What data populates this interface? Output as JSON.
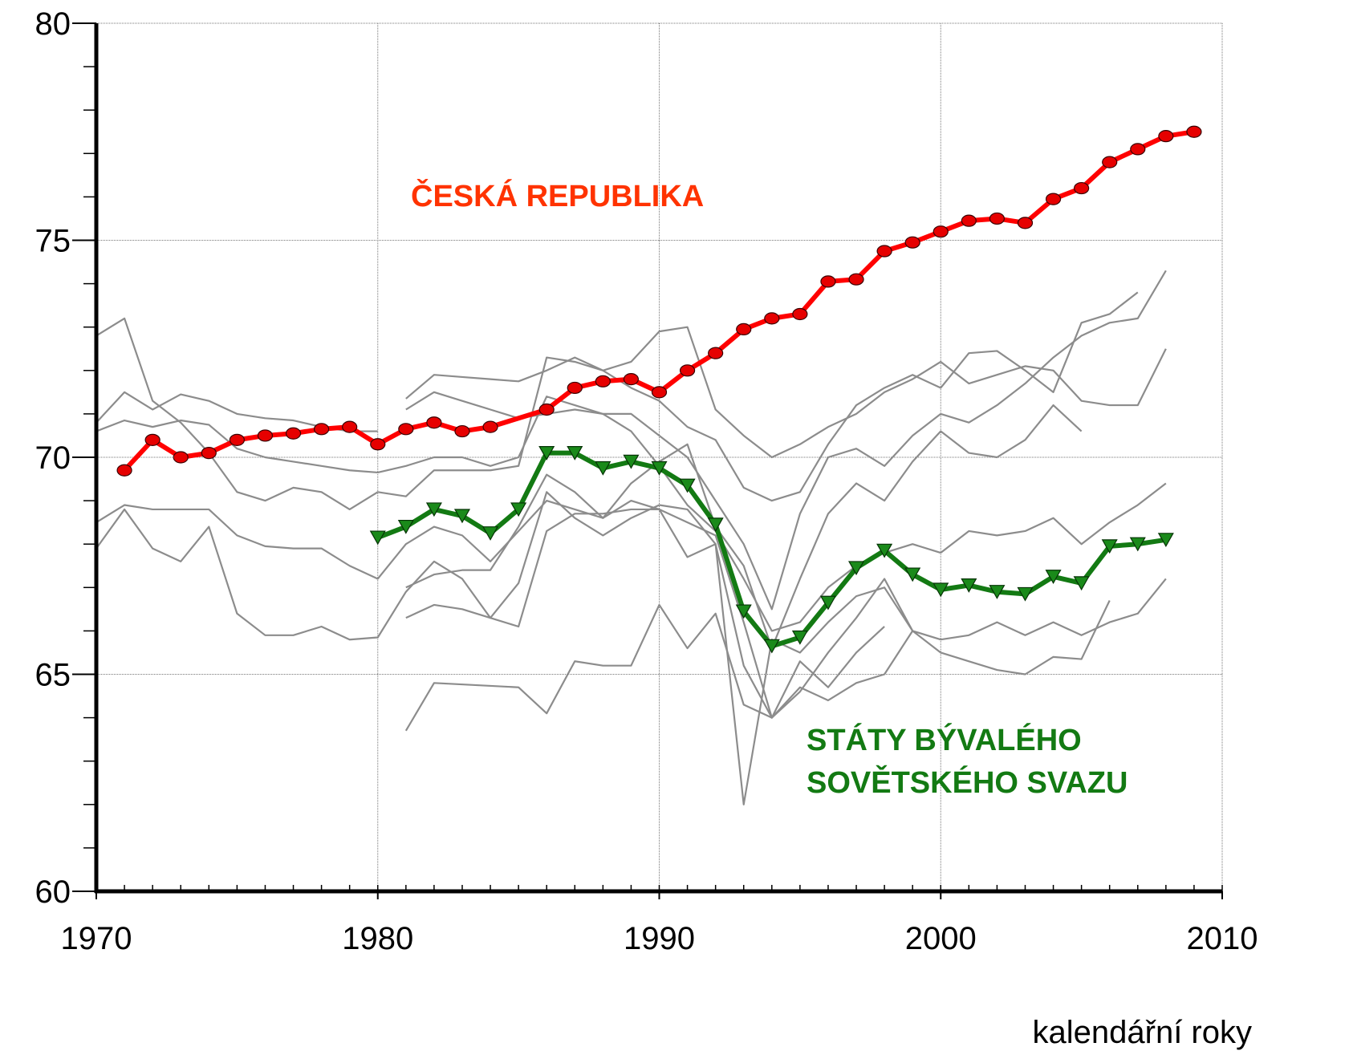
{
  "chart_data": {
    "type": "line",
    "xlabel": "kalendářní roky",
    "xlim": [
      1970,
      2010
    ],
    "xticks": [
      1970,
      1980,
      1990,
      2000,
      2010
    ],
    "xminor_step": 1,
    "ylim": [
      60,
      80
    ],
    "yticks": [
      60,
      65,
      70,
      75,
      80
    ],
    "yminor_step": 1,
    "grid": true,
    "annotations": [
      "ČESKÁ REPUBLIKA",
      "STÁTY BÝVALÉHO",
      "SOVĚTSKÉHO SVAZU"
    ],
    "series": [
      {
        "color": "#8c8c8c",
        "x": [
          1970,
          1971,
          1972,
          1973,
          1974,
          1975,
          1976,
          1977,
          1978,
          1979,
          1980,
          1981,
          1982,
          1983,
          1984,
          1985,
          1986,
          1987,
          1988,
          1989,
          1990,
          1991,
          1992,
          1993,
          1994,
          1995,
          1996,
          1997,
          1998,
          1999,
          2000,
          2001,
          2002,
          2003,
          2004,
          2005,
          2006,
          2007,
          2008
        ],
        "values": [
          72.8,
          73.2,
          71.3,
          70.8,
          70.1,
          69.2,
          69.0,
          69.3,
          69.2,
          68.8,
          69.2,
          69.1,
          69.7,
          69.7,
          69.7,
          69.8,
          72.3,
          72.2,
          72.0,
          72.2,
          72.9,
          73.0,
          71.1,
          70.5,
          70.0,
          70.3,
          70.7,
          71.0,
          71.5,
          71.8,
          72.2,
          71.7,
          71.9,
          72.1,
          72.0,
          71.3,
          71.2,
          71.2,
          72.5
        ]
      },
      {
        "color": "#8c8c8c",
        "x": [
          1970,
          1971,
          1972,
          1973,
          1974,
          1975,
          1976,
          1977,
          1978,
          1979,
          1980
        ],
        "values": [
          70.8,
          71.5,
          71.1,
          71.45,
          71.3,
          71.0,
          70.9,
          70.85,
          70.7,
          70.6,
          70.6
        ]
      },
      {
        "color": "#8c8c8c",
        "x": [
          1970,
          1971,
          1972,
          1973,
          1974,
          1975,
          1976,
          1977,
          1978,
          1979,
          1980,
          1981,
          1982,
          1983,
          1984,
          1985,
          1986,
          1987,
          1988,
          1989,
          1990,
          1991,
          1992,
          1993,
          1994,
          1995,
          1996,
          1997,
          1998,
          1999,
          2000,
          2001,
          2002,
          2003,
          2004,
          2005,
          2006,
          2007,
          2008
        ],
        "values": [
          70.6,
          70.85,
          70.7,
          70.85,
          70.75,
          70.2,
          70.0,
          69.9,
          69.8,
          69.7,
          69.65,
          69.8,
          70.0,
          70.0,
          69.8,
          70.0,
          71.4,
          71.2,
          71.0,
          70.6,
          69.8,
          68.9,
          68.3,
          67.2,
          66.0,
          66.2,
          67.0,
          67.5,
          67.8,
          68.0,
          67.8,
          68.3,
          68.2,
          68.3,
          68.6,
          68.0,
          68.5,
          68.9,
          69.4
        ]
      },
      {
        "color": "#8c8c8c",
        "x": [
          1970,
          1971,
          1972,
          1973,
          1974,
          1975,
          1976,
          1977,
          1978,
          1979,
          1980,
          1981,
          1982,
          1983,
          1984,
          1985,
          1986,
          1987,
          1988,
          1989,
          1990,
          1991,
          1992,
          1993,
          1994,
          1995,
          1996,
          1997,
          1998,
          1999,
          2000,
          2001,
          2002,
          2003,
          2004,
          2005,
          2006,
          2007,
          2008
        ],
        "values": [
          68.5,
          68.9,
          68.8,
          68.8,
          68.8,
          68.2,
          67.95,
          67.9,
          67.9,
          67.5,
          67.2,
          68.0,
          68.4,
          68.2,
          67.6,
          68.3,
          69.0,
          68.8,
          68.6,
          69.0,
          68.8,
          68.5,
          68.2,
          66.2,
          64.0,
          64.6,
          65.5,
          66.3,
          67.2,
          66.0,
          65.8,
          65.9,
          66.2,
          65.9,
          66.2,
          65.9,
          66.2,
          66.4,
          67.2
        ]
      },
      {
        "color": "#8c8c8c",
        "x": [
          1970,
          1971,
          1972,
          1973,
          1974,
          1975,
          1976,
          1977,
          1978,
          1979,
          1980,
          1981,
          1982,
          1983,
          1984,
          1985,
          1986,
          1987,
          1988,
          1989,
          1990,
          1991,
          1992,
          1993,
          1994,
          1995,
          1996,
          1997,
          1998
        ],
        "values": [
          67.9,
          68.8,
          67.9,
          67.6,
          68.4,
          66.4,
          65.9,
          65.9,
          66.1,
          65.8,
          65.85,
          66.9,
          67.6,
          67.2,
          66.3,
          67.1,
          69.2,
          68.6,
          68.2,
          68.6,
          68.9,
          68.8,
          68.0,
          65.2,
          64.0,
          65.3,
          64.7,
          65.5,
          66.1
        ]
      },
      {
        "color": "#8c8c8c",
        "x": [
          1981,
          1982,
          1983,
          1984,
          1985,
          1986,
          1987,
          1988,
          1989,
          1990,
          1991,
          1992,
          1993,
          1994,
          1995,
          1996,
          1997,
          1998,
          1999,
          2000,
          2001,
          2002,
          2003,
          2004,
          2005,
          2006,
          2007
        ],
        "values": [
          71.35,
          71.9,
          71.85,
          71.8,
          71.75,
          72.0,
          72.3,
          72.0,
          71.6,
          71.3,
          70.7,
          70.4,
          69.3,
          69.0,
          69.2,
          70.3,
          71.2,
          71.6,
          71.9,
          71.6,
          72.4,
          72.45,
          72.0,
          71.5,
          73.1,
          73.3,
          73.8
        ]
      },
      {
        "color": "#8c8c8c",
        "x": [
          1981,
          1982,
          1983,
          1984,
          1985,
          1986,
          1987,
          1988,
          1989,
          1990,
          1991,
          1992,
          1993,
          1994,
          1995,
          1996,
          1997,
          1998,
          1999,
          2000,
          2001,
          2002,
          2003,
          2004,
          2005,
          2006,
          2007,
          2008
        ],
        "values": [
          71.1,
          71.5,
          71.3,
          71.1,
          70.9,
          71.0,
          71.1,
          71.0,
          71.0,
          70.5,
          70.0,
          69.0,
          68.0,
          66.5,
          68.7,
          70.0,
          70.2,
          69.8,
          70.5,
          71.0,
          70.8,
          71.2,
          71.7,
          72.3,
          72.8,
          73.1,
          73.2,
          74.3
        ]
      },
      {
        "color": "#8c8c8c",
        "x": [
          1981,
          1982,
          1983,
          1984,
          1985,
          1986,
          1987,
          1988,
          1989,
          1990,
          1991,
          1992,
          1993,
          1994,
          1995,
          1996,
          1997,
          1998,
          1999,
          2000,
          2001,
          2002,
          2003,
          2004,
          2005,
          2006
        ],
        "values": [
          66.3,
          66.6,
          66.5,
          66.3,
          66.1,
          68.3,
          68.7,
          68.7,
          68.8,
          68.8,
          67.7,
          68.0,
          62.0,
          65.8,
          65.5,
          66.2,
          66.8,
          67.0,
          66.0,
          65.5,
          65.3,
          65.1,
          65.0,
          65.4,
          65.35,
          66.7
        ]
      },
      {
        "color": "#8c8c8c",
        "x": [
          1981,
          1982,
          1985,
          1986,
          1987,
          1988,
          1989,
          1990,
          1991,
          1992,
          1993,
          1994,
          1995,
          1996,
          1997,
          1998,
          1999
        ],
        "values": [
          63.7,
          64.8,
          64.7,
          64.1,
          65.3,
          65.2,
          65.2,
          66.6,
          65.6,
          66.4,
          64.3,
          64.0,
          64.7,
          64.4,
          64.8,
          65.0,
          66.0
        ]
      },
      {
        "color": "#8c8c8c",
        "x": [
          1981,
          1982,
          1983,
          1984,
          1985,
          1986,
          1987,
          1988,
          1989,
          1990,
          1991,
          1992,
          1993,
          1994,
          1995,
          1996,
          1997,
          1998,
          1999,
          2000,
          2001,
          2002,
          2003,
          2004,
          2005
        ],
        "values": [
          67.0,
          67.3,
          67.4,
          67.4,
          68.4,
          69.6,
          69.2,
          68.6,
          69.4,
          69.9,
          70.3,
          68.4,
          67.5,
          65.6,
          67.2,
          68.7,
          69.4,
          69.0,
          69.9,
          70.6,
          70.1,
          70.0,
          70.4,
          71.2,
          70.6
        ]
      },
      {
        "color": "#ff0000",
        "marker": "circle",
        "marker_color": "#e60000",
        "x": [
          1971,
          1972,
          1973,
          1974,
          1975,
          1976,
          1977,
          1978,
          1979,
          1980,
          1981,
          1982,
          1983,
          1984,
          1986,
          1987,
          1988,
          1989,
          1990,
          1991,
          1992,
          1993,
          1994,
          1995,
          1996,
          1997,
          1998,
          1999,
          2000,
          2001,
          2002,
          2003,
          2004,
          2005,
          2006,
          2007,
          2008,
          2009
        ],
        "values": [
          69.7,
          70.4,
          70.0,
          70.1,
          70.4,
          70.5,
          70.55,
          70.65,
          70.7,
          70.3,
          70.65,
          70.8,
          70.6,
          70.7,
          71.1,
          71.6,
          71.75,
          71.8,
          71.5,
          72.0,
          72.4,
          72.95,
          73.2,
          73.3,
          74.05,
          74.1,
          74.75,
          74.95,
          75.2,
          75.45,
          75.5,
          75.4,
          75.95,
          76.2,
          76.8,
          77.1,
          77.4,
          77.5
        ]
      },
      {
        "color": "#137a13",
        "marker": "triangle-down",
        "marker_color": "#1a8a1a",
        "x": [
          1980,
          1981,
          1982,
          1983,
          1984,
          1985,
          1986,
          1987,
          1988,
          1989,
          1990,
          1991,
          1992,
          1993,
          1994,
          1995,
          1996,
          1997,
          1998,
          1999,
          2000,
          2001,
          2002,
          2003,
          2004,
          2005,
          2006,
          2007,
          2008
        ],
        "values": [
          68.15,
          68.4,
          68.8,
          68.65,
          68.25,
          68.8,
          70.1,
          70.1,
          69.75,
          69.9,
          69.75,
          69.35,
          68.45,
          66.45,
          65.65,
          65.85,
          66.65,
          67.45,
          67.85,
          67.3,
          66.95,
          67.05,
          66.9,
          66.85,
          67.25,
          67.1,
          67.95,
          68.0,
          68.1
        ]
      }
    ]
  }
}
